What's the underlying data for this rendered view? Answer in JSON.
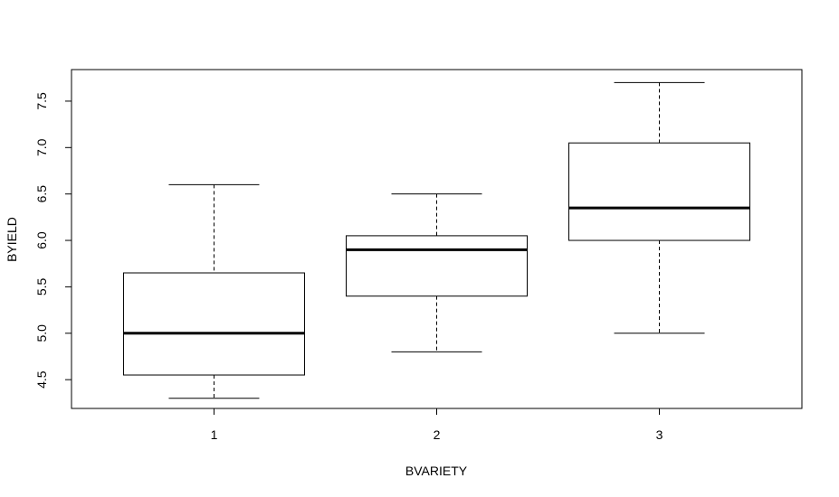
{
  "chart_data": {
    "type": "boxplot",
    "title": "",
    "xlabel": "BVARIETY",
    "ylabel": "BYIELD",
    "categories": [
      "1",
      "2",
      "3"
    ],
    "boxes": [
      {
        "category": "1",
        "min": 4.3,
        "q1": 4.55,
        "median": 5.0,
        "q3": 5.65,
        "max": 6.6
      },
      {
        "category": "2",
        "min": 4.8,
        "q1": 5.4,
        "median": 5.9,
        "q3": 6.05,
        "max": 6.5
      },
      {
        "category": "3",
        "min": 5.0,
        "q1": 6.0,
        "median": 6.35,
        "q3": 7.05,
        "max": 7.7
      }
    ],
    "ylim": [
      4.19,
      7.84
    ],
    "y_ticks": [
      "4.5",
      "5.0",
      "5.5",
      "6.0",
      "6.5",
      "7.0",
      "7.5"
    ],
    "grid": false,
    "legend": "none"
  }
}
